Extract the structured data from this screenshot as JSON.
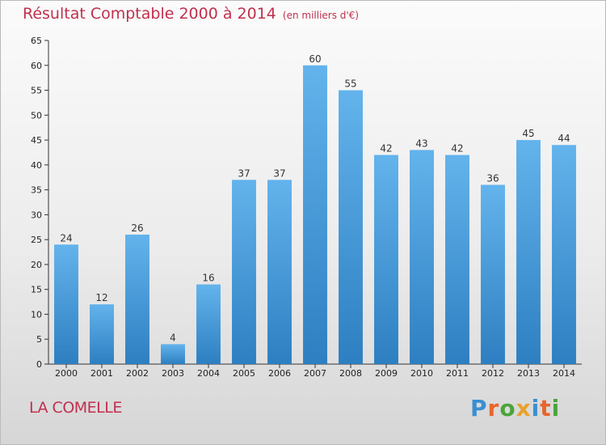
{
  "title": "Résultat Comptable 2000 à 2014",
  "subtitle": "(en milliers d'€)",
  "commune": "LA COMELLE",
  "logo": {
    "text": "Proxiti",
    "colors": [
      "#3a8fd0",
      "#e8652b",
      "#4aa53a",
      "#e8a22b",
      "#3a8fd0",
      "#e8652b",
      "#4aa53a"
    ]
  },
  "colors": {
    "bar_light": "#63b3ec",
    "bar_dark": "#2d7fc1",
    "title": "#c0304d"
  },
  "chart_data": {
    "type": "bar",
    "categories": [
      "2000",
      "2001",
      "2002",
      "2003",
      "2004",
      "2005",
      "2006",
      "2007",
      "2008",
      "2009",
      "2010",
      "2011",
      "2012",
      "2013",
      "2014"
    ],
    "values": [
      24,
      12,
      26,
      4,
      16,
      37,
      37,
      60,
      55,
      42,
      43,
      42,
      36,
      45,
      44
    ],
    "ylim": [
      0,
      65
    ],
    "yticks": [
      0,
      5,
      10,
      15,
      20,
      25,
      30,
      35,
      40,
      45,
      50,
      55,
      60,
      65
    ],
    "grid": false,
    "data_labels": true
  }
}
